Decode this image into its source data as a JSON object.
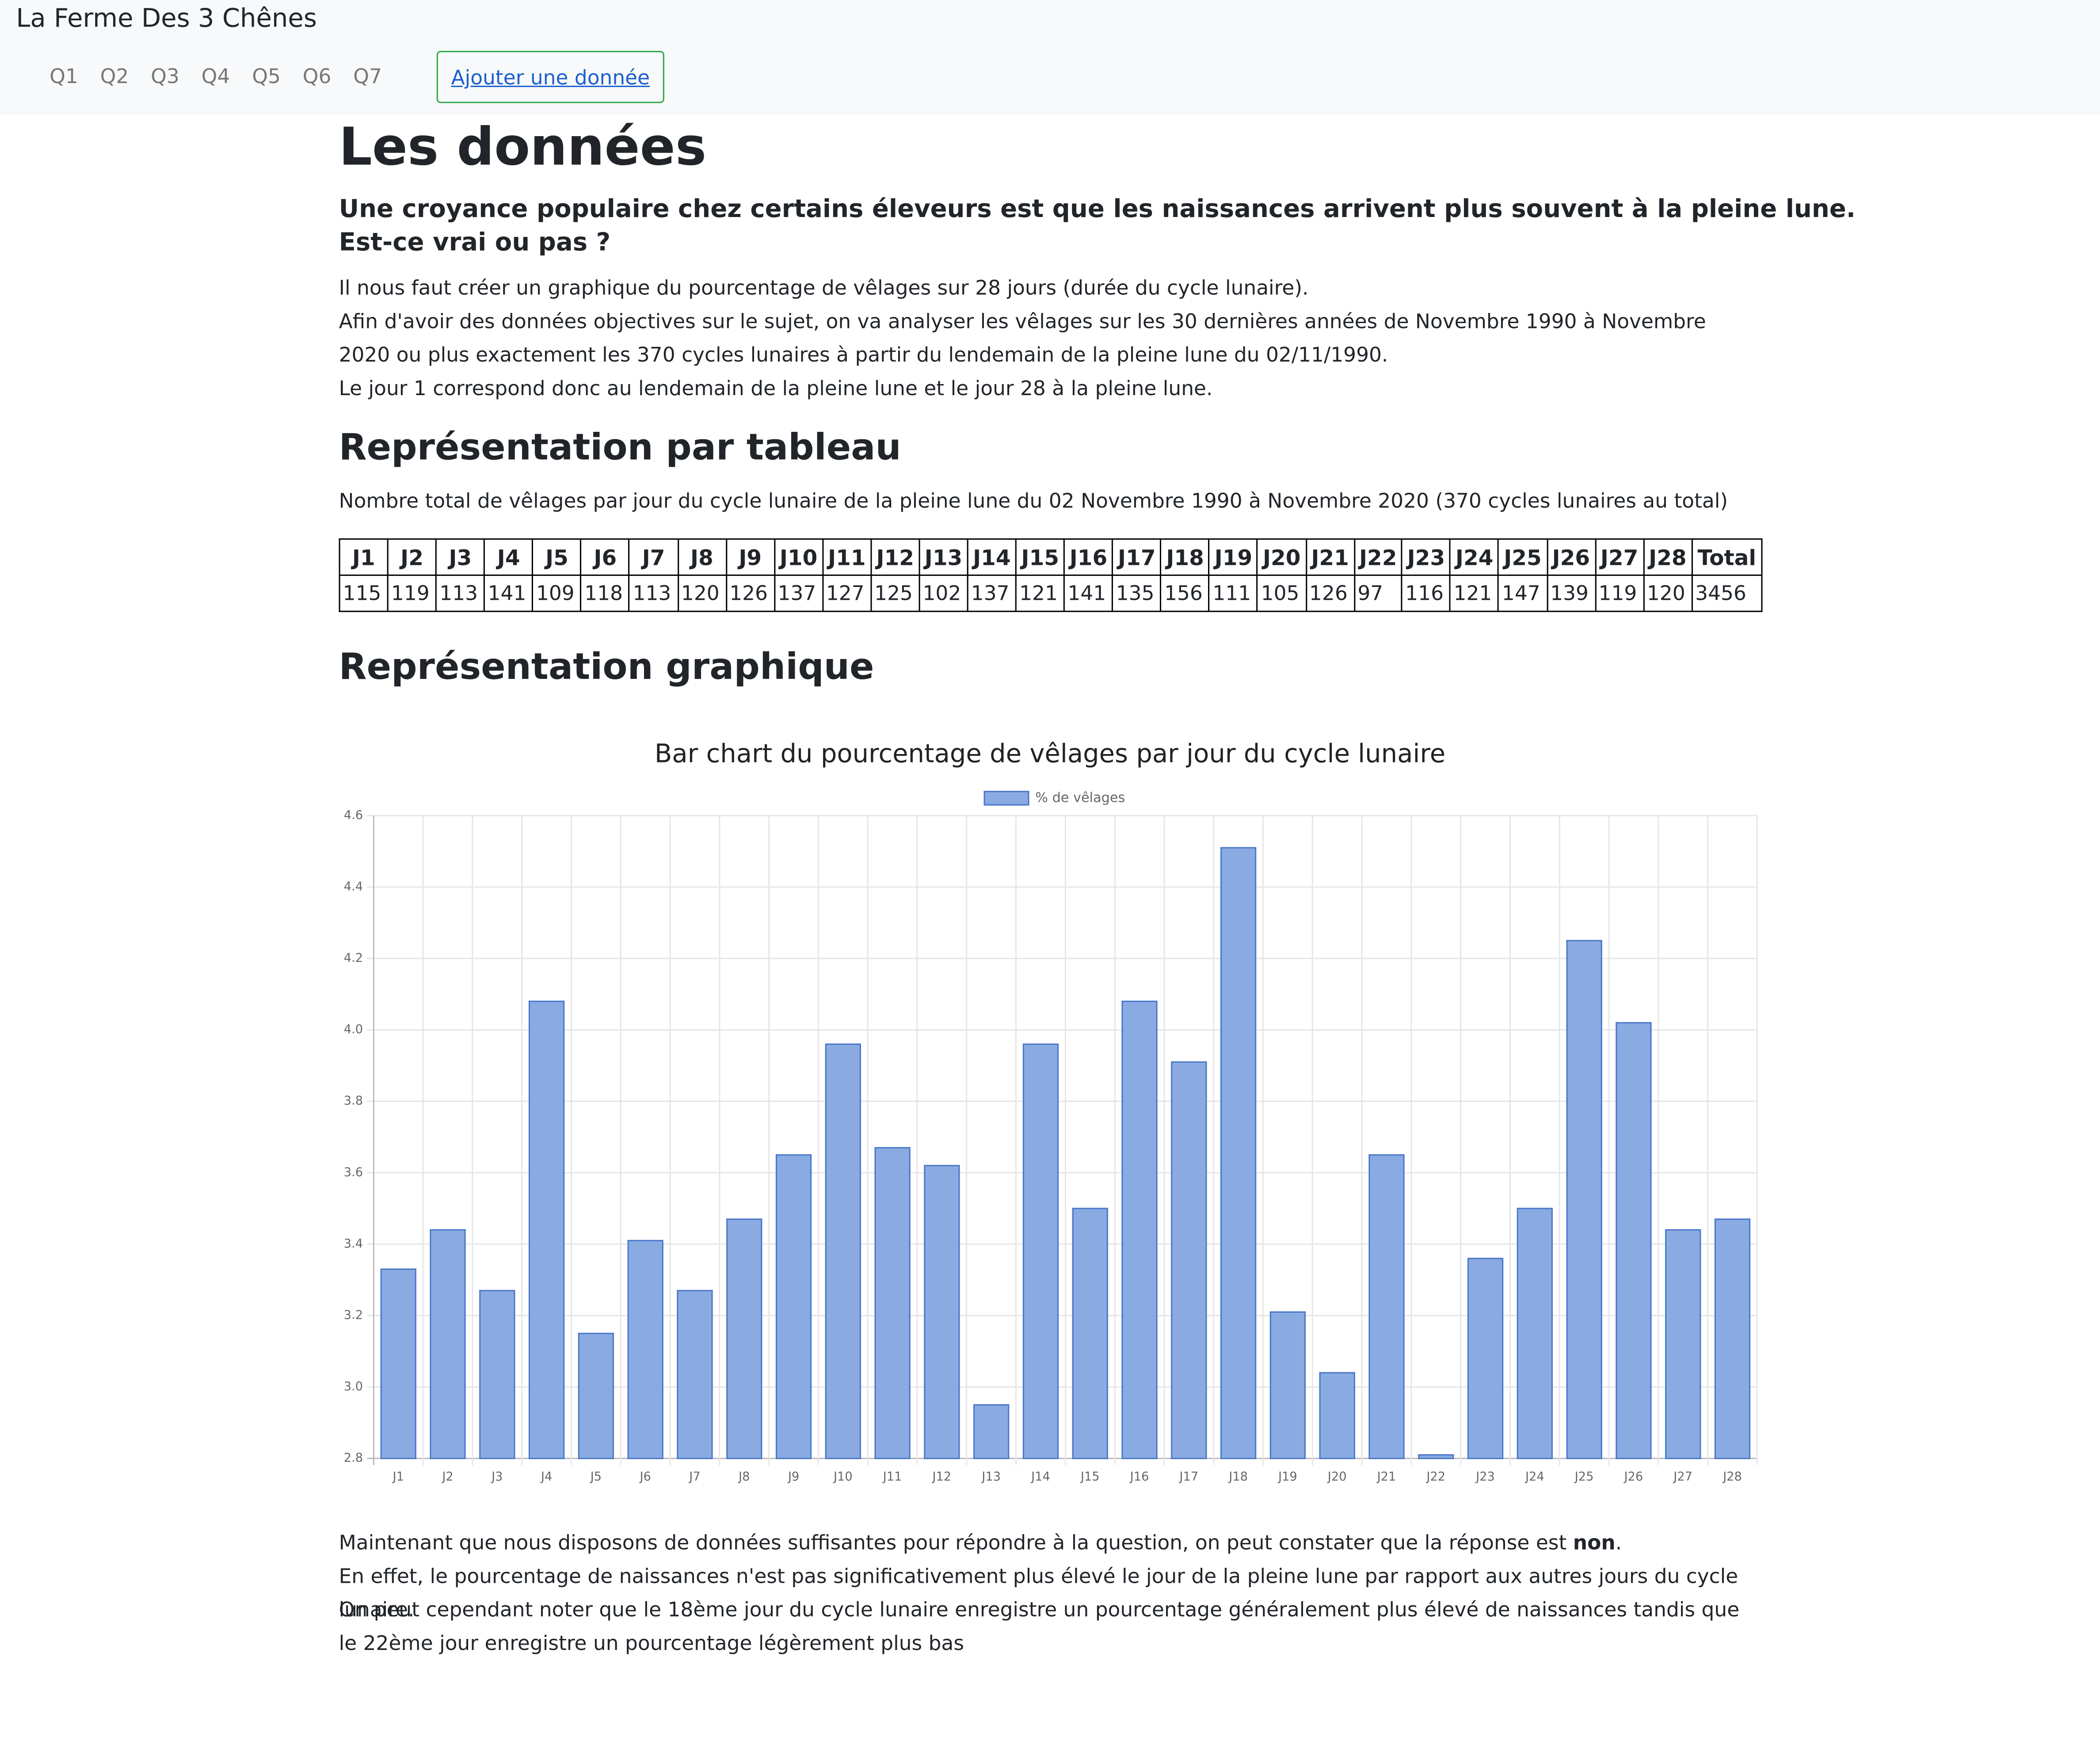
{
  "header": {
    "brand": "La Ferme Des 3 Chênes",
    "nav": [
      "Q1",
      "Q2",
      "Q3",
      "Q4",
      "Q5",
      "Q6",
      "Q7"
    ],
    "button": "Ajouter une donnée"
  },
  "main": {
    "title": "Les données",
    "question": [
      "Une croyance populaire chez certains éleveurs est que les naissances arrivent plus souvent à la pleine lune.",
      "Est-ce vrai ou pas ?"
    ],
    "intro": [
      "Il nous faut créer un graphique du pourcentage de vêlages sur 28 jours (durée du cycle lunaire).",
      "Afin d'avoir des données objectives sur le sujet, on va analyser les vêlages sur les 30 dernières années de Novembre 1990 à Novembre 2020 ou plus exactement les 370 cycles lunaires à partir du lendemain de la pleine lune du 02/11/1990.",
      "Le jour 1 correspond donc au lendemain de la pleine lune et le jour 28 à la pleine lune."
    ],
    "table_heading": "Représentation par tableau",
    "table_caption": "Nombre total de vêlages par jour du cycle lunaire de la pleine lune du 02 Novembre 1990 à Novembre 2020 (370 cycles lunaires au total)",
    "table": {
      "header": [
        "J1",
        "J2",
        "J3",
        "J4",
        "J5",
        "J6",
        "J7",
        "J8",
        "J9",
        "J10",
        "J11",
        "J12",
        "J13",
        "J14",
        "J15",
        "J16",
        "J17",
        "J18",
        "J19",
        "J20",
        "J21",
        "J22",
        "J23",
        "J24",
        "J25",
        "J26",
        "J27",
        "J28",
        "Total"
      ],
      "row": [
        115,
        119,
        113,
        141,
        109,
        118,
        113,
        120,
        126,
        137,
        127,
        125,
        102,
        137,
        121,
        141,
        135,
        156,
        111,
        105,
        126,
        97,
        116,
        121,
        147,
        139,
        119,
        120,
        3456
      ]
    },
    "chart_heading": "Représentation graphique",
    "conclusion": {
      "line1_before": "Maintenant que nous disposons de données suffisantes pour répondre à la question, on peut constater que la réponse est ",
      "line1_bold": "non",
      "line1_after": ".",
      "line2": "En effet, le pourcentage de naissances n'est pas significativement plus élevé le jour de la pleine lune par rapport aux autres jours du cycle lunaire.",
      "line3": "On peut cependant noter que le 18ème jour du cycle lunaire enregistre un pourcentage généralement plus élevé de naissances tandis que le 22ème jour enregistre un pourcentage légèrement plus bas"
    }
  },
  "chart_data": {
    "type": "bar",
    "title": "Bar chart du pourcentage de vêlages par jour du cycle lunaire",
    "categories": [
      "J1",
      "J2",
      "J3",
      "J4",
      "J5",
      "J6",
      "J7",
      "J8",
      "J9",
      "J10",
      "J11",
      "J12",
      "J13",
      "J14",
      "J15",
      "J16",
      "J17",
      "J18",
      "J19",
      "J20",
      "J21",
      "J22",
      "J23",
      "J24",
      "J25",
      "J26",
      "J27",
      "J28"
    ],
    "series": [
      {
        "name": "% de vêlages",
        "color": "#8aabe2",
        "values": [
          3.33,
          3.44,
          3.27,
          4.08,
          3.15,
          3.41,
          3.27,
          3.47,
          3.65,
          3.96,
          3.67,
          3.62,
          2.95,
          3.96,
          3.5,
          4.08,
          3.91,
          4.51,
          3.21,
          3.04,
          3.65,
          2.81,
          3.36,
          3.5,
          4.25,
          4.02,
          3.44,
          3.47
        ]
      }
    ],
    "ylim": [
      2.8,
      4.6
    ],
    "yticks": [
      2.8,
      {
        "value": 3,
        "label": "3.0"
      },
      3.2,
      3.4,
      3.6,
      3.8,
      {
        "value": 4,
        "label": "4.0"
      },
      4.2,
      4.4,
      4.6
    ],
    "grid": true,
    "legend": "top"
  }
}
